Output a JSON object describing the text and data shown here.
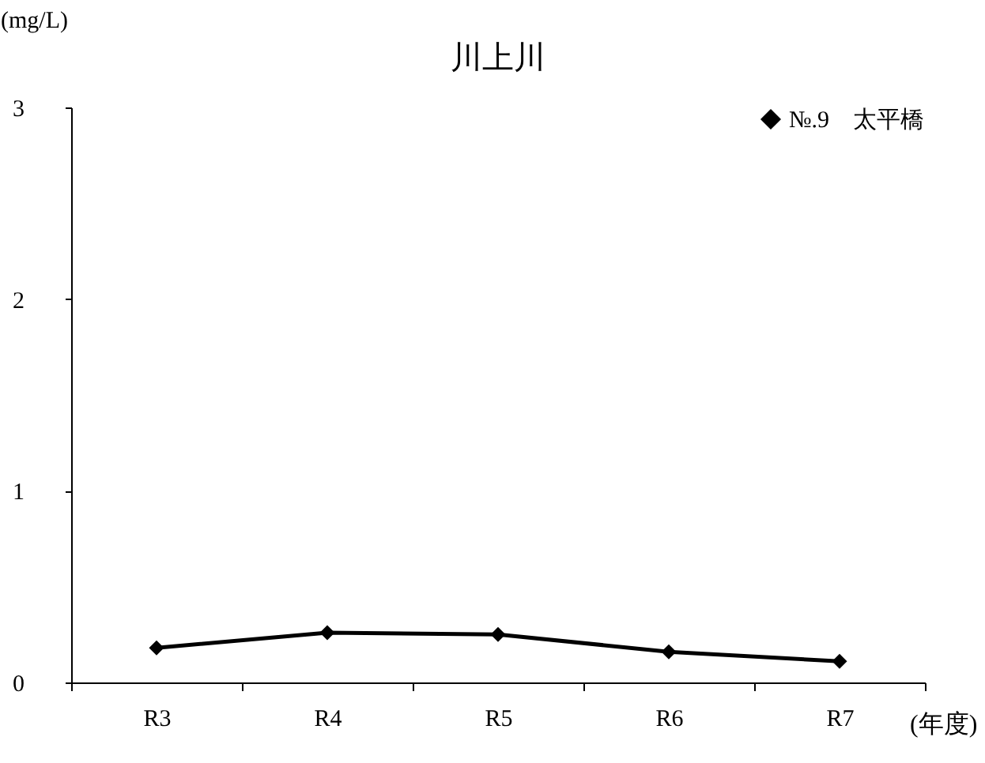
{
  "chart_data": {
    "type": "line",
    "title": "川上川",
    "ylabel": "(mg/L)",
    "xlabel": "(年度)",
    "categories": [
      "R3",
      "R4",
      "R5",
      "R6",
      "R7"
    ],
    "series": [
      {
        "name": "№.9　太平橋",
        "color": "#000000",
        "values": [
          0.18,
          0.26,
          0.25,
          0.16,
          0.11
        ]
      }
    ],
    "ylim": [
      0,
      3
    ],
    "yticks": [
      0,
      1,
      2,
      3
    ],
    "grid": false,
    "legend": "top right",
    "marker": "diamond",
    "line_style": "solid"
  }
}
